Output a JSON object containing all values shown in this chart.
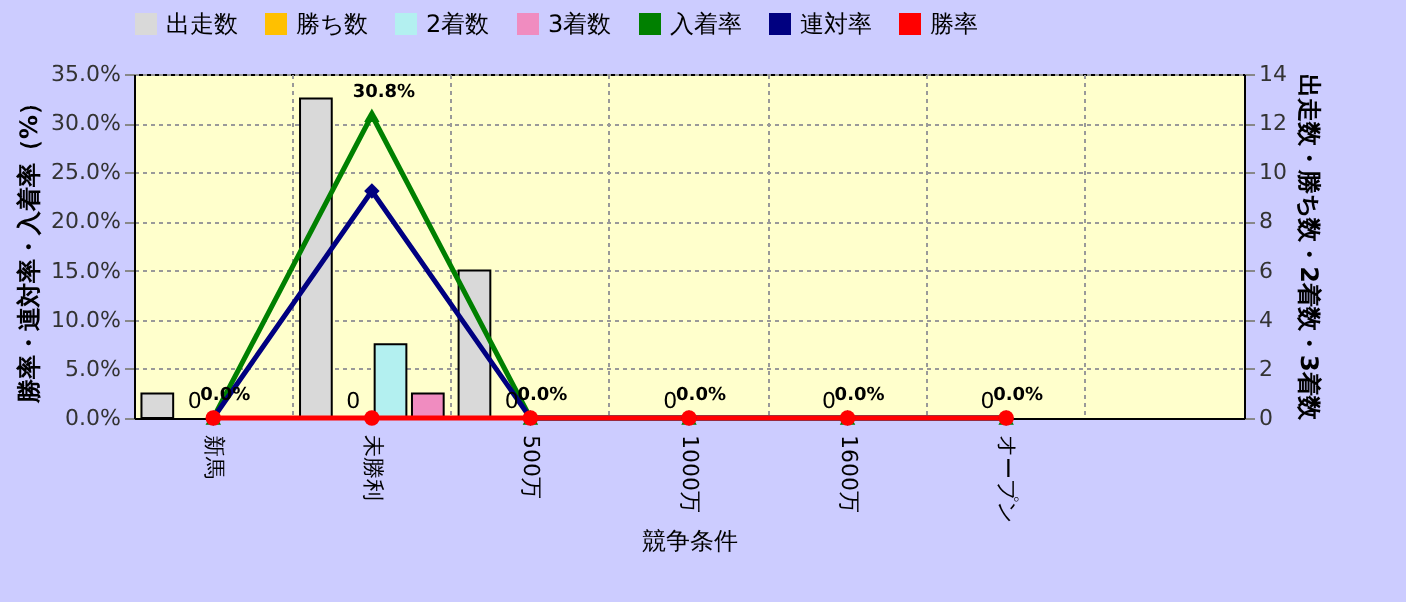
{
  "chart_data": {
    "type": "bar",
    "xlabel": "競争条件",
    "ylabel": "勝率・連対率・入着率（%）",
    "y2label": "出走数・勝ち数・2着数・3着数",
    "categories": [
      "新馬",
      "未勝利",
      "500万",
      "1000万",
      "1600万",
      "オープン",
      null
    ],
    "series": [
      {
        "name": "出走数",
        "axis": "y2",
        "color": "#d9d9d9",
        "values": [
          1,
          13,
          6,
          0,
          0,
          0,
          null
        ]
      },
      {
        "name": "勝ち数",
        "axis": "y2",
        "color": "#ffc000",
        "values": [
          0,
          0,
          0,
          0,
          0,
          0,
          null
        ],
        "value_labels": [
          "0",
          "0",
          "0",
          "0",
          "0",
          "0",
          null
        ]
      },
      {
        "name": "2着数",
        "axis": "y2",
        "color": "#b3f0f0",
        "values": [
          0,
          3,
          0,
          0,
          0,
          0,
          null
        ]
      },
      {
        "name": "3着数",
        "axis": "y2",
        "color": "#f08cc0",
        "values": [
          0,
          1,
          0,
          0,
          0,
          0,
          null
        ]
      },
      {
        "name": "入着率",
        "type": "line",
        "axis": "y",
        "color": "#008000",
        "marker": "triangle",
        "values": [
          0,
          30.8,
          0,
          0,
          0,
          0,
          null
        ],
        "value_labels": [
          "0.0%",
          "30.8%",
          "0.0%",
          "0.0%",
          "0.0%",
          "0.0%",
          null
        ]
      },
      {
        "name": "連対率",
        "type": "line",
        "axis": "y",
        "color": "#000080",
        "marker": "diamond",
        "values": [
          0,
          23.1,
          0,
          0,
          0,
          0,
          null
        ]
      },
      {
        "name": "勝率",
        "type": "line",
        "axis": "y",
        "color": "#ff0000",
        "marker": "circle",
        "values": [
          0,
          0,
          0,
          0,
          0,
          0,
          null
        ]
      }
    ],
    "ylim": [
      0,
      35
    ],
    "yticks": [
      {
        "value": 0,
        "label": "0.0%"
      },
      {
        "value": 5,
        "label": "5.0%"
      },
      {
        "value": 10,
        "label": "10.0%"
      },
      {
        "value": 15,
        "label": "15.0%"
      },
      {
        "value": 20,
        "label": "20.0%"
      },
      {
        "value": 25,
        "label": "25.0%"
      },
      {
        "value": 30,
        "label": "30.0%"
      },
      {
        "value": 35,
        "label": "35.0%"
      }
    ],
    "y2lim": [
      0,
      14
    ],
    "y2ticks": [
      0,
      2,
      4,
      6,
      8,
      10,
      12,
      14
    ],
    "grid": true,
    "legend": "top"
  }
}
